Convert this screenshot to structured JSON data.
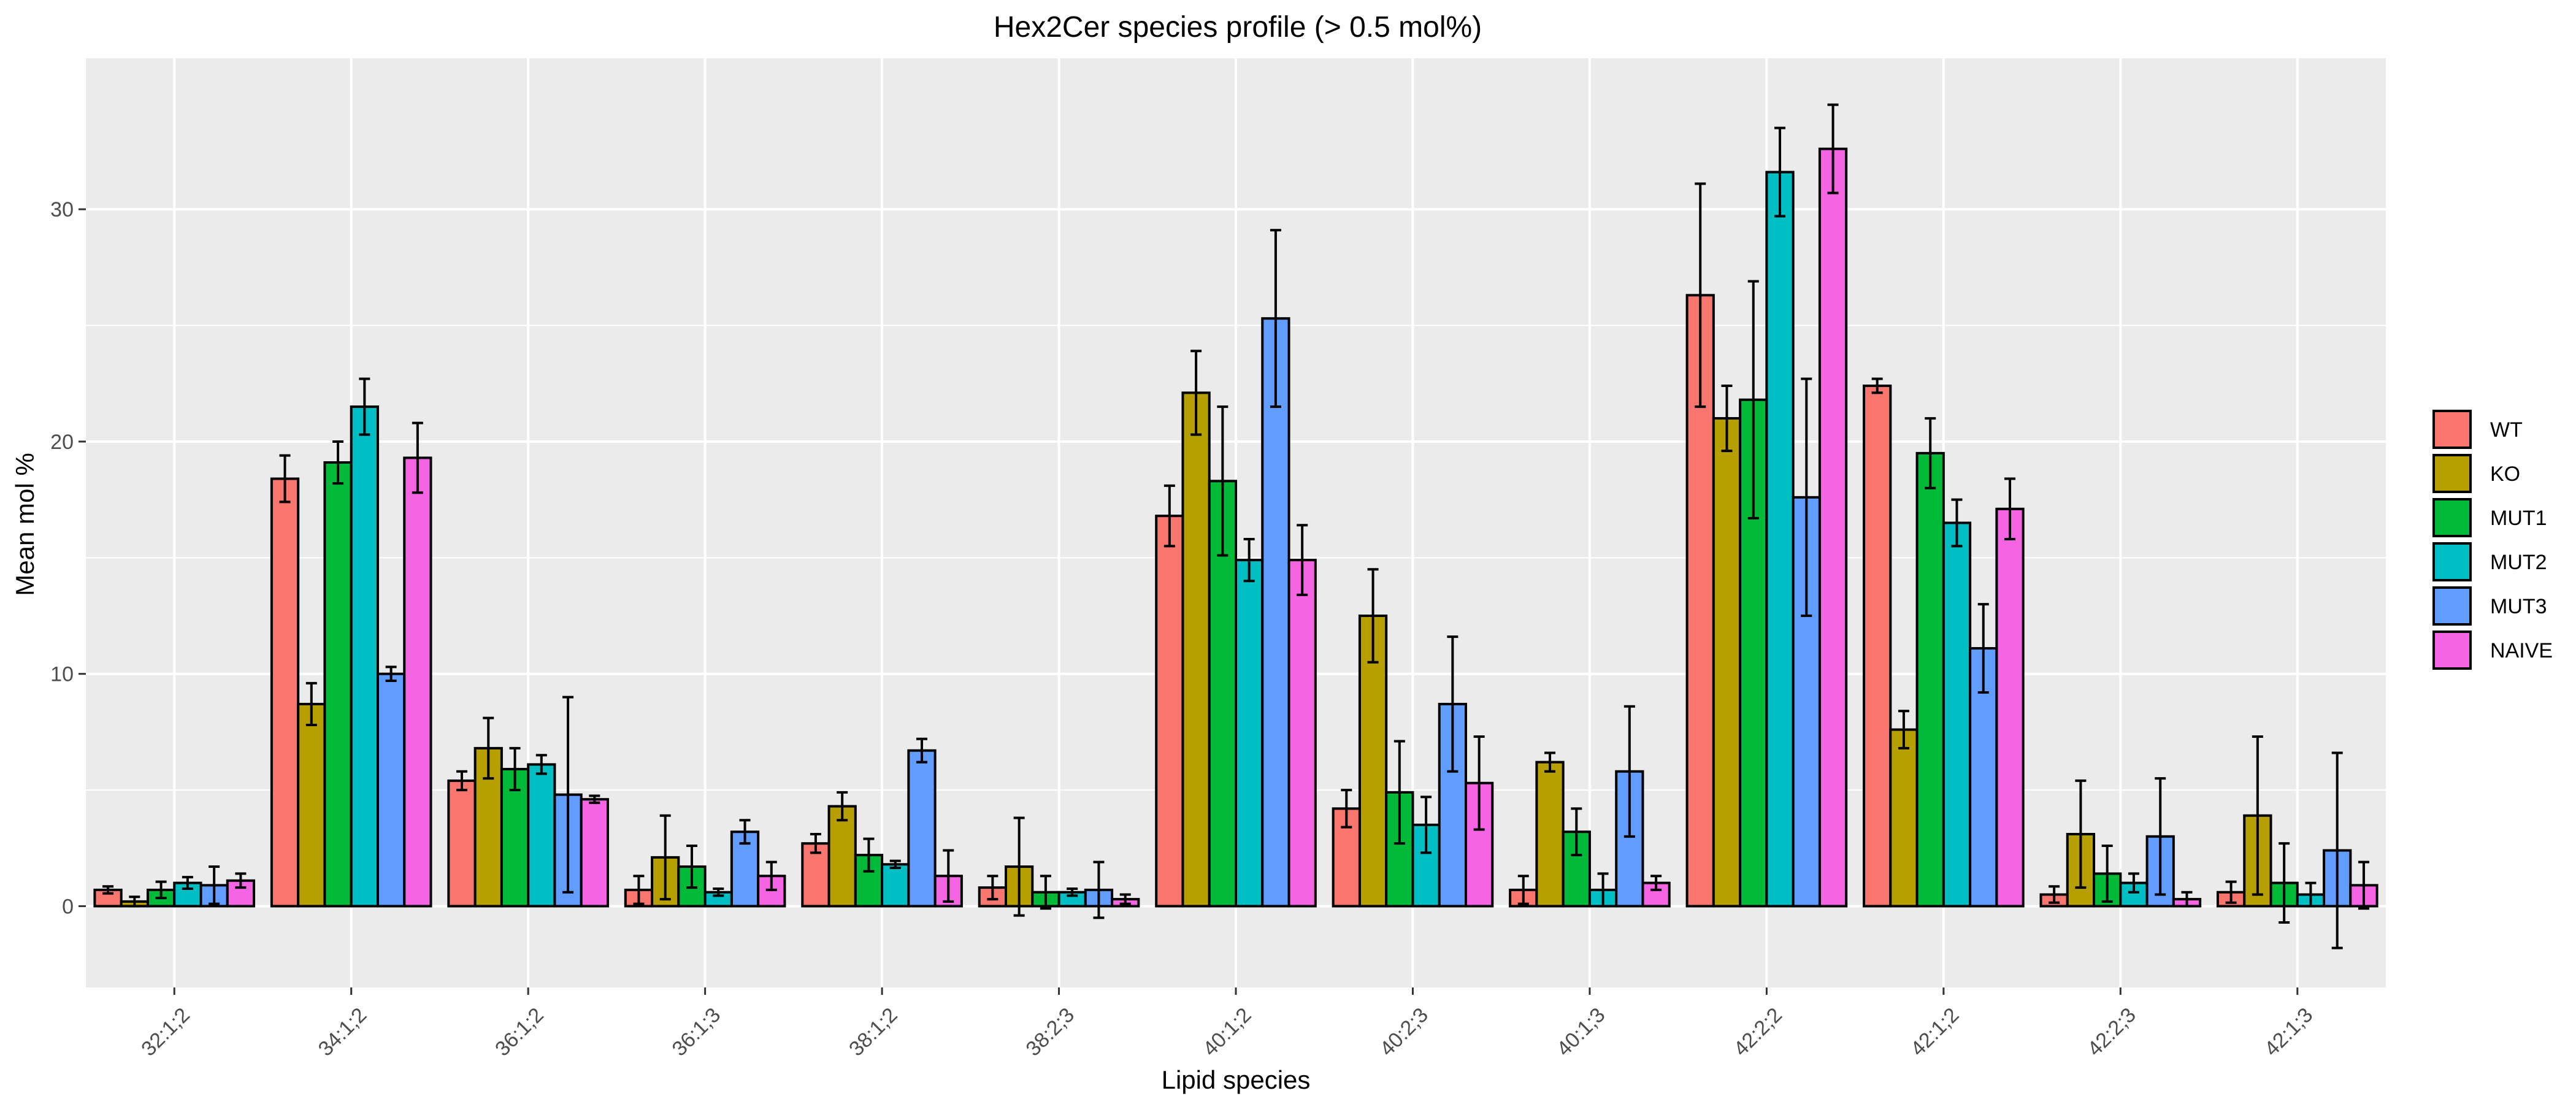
{
  "chart_data": {
    "type": "bar",
    "title": "Hex2Cer species profile (> 0.5 mol%)",
    "xlabel": "Lipid species",
    "ylabel": "Mean mol %",
    "ylim": [
      -3.5,
      36.5
    ],
    "yticks": [
      0,
      10,
      20,
      30
    ],
    "grid": true,
    "legend_position": "right",
    "categories": [
      "32:1;2",
      "34:1;2",
      "36:1;2",
      "36:1;3",
      "38:1;2",
      "38:2;3",
      "40:1;2",
      "40:2;3",
      "40:1;3",
      "42:2;2",
      "42:1;2",
      "42:2;3",
      "42:1;3"
    ],
    "series": [
      {
        "name": "WT",
        "color": "#F8766D",
        "values": [
          0.7,
          18.4,
          5.4,
          0.7,
          2.7,
          0.8,
          16.8,
          4.2,
          0.7,
          26.3,
          22.4,
          0.5,
          0.6
        ],
        "errors": [
          0.15,
          1.0,
          0.4,
          0.6,
          0.4,
          0.5,
          1.3,
          0.8,
          0.6,
          4.8,
          0.3,
          0.35,
          0.45
        ]
      },
      {
        "name": "KO",
        "color": "#B79F00",
        "values": [
          0.2,
          8.7,
          6.8,
          2.1,
          4.3,
          1.7,
          22.1,
          12.5,
          6.2,
          21.0,
          7.6,
          3.1,
          3.9
        ],
        "errors": [
          0.2,
          0.9,
          1.3,
          1.8,
          0.6,
          2.1,
          1.8,
          2.0,
          0.4,
          1.4,
          0.8,
          2.3,
          3.4
        ]
      },
      {
        "name": "MUT1",
        "color": "#00BA38",
        "values": [
          0.7,
          19.1,
          5.9,
          1.7,
          2.2,
          0.6,
          18.3,
          4.9,
          3.2,
          21.8,
          19.5,
          1.4,
          1.0
        ],
        "errors": [
          0.35,
          0.9,
          0.9,
          0.9,
          0.7,
          0.7,
          3.2,
          2.2,
          1.0,
          5.1,
          1.5,
          1.2,
          1.7
        ]
      },
      {
        "name": "MUT2",
        "color": "#00BFC4",
        "values": [
          1.0,
          21.5,
          6.1,
          0.6,
          1.8,
          0.6,
          14.9,
          3.5,
          0.7,
          31.6,
          16.5,
          1.0,
          0.5
        ],
        "errors": [
          0.25,
          1.2,
          0.4,
          0.15,
          0.15,
          0.15,
          0.9,
          1.2,
          0.7,
          1.9,
          1.0,
          0.4,
          0.5
        ]
      },
      {
        "name": "MUT3",
        "color": "#619CFF",
        "values": [
          0.9,
          10.0,
          4.8,
          3.2,
          6.7,
          0.7,
          25.3,
          8.7,
          5.8,
          17.6,
          11.1,
          3.0,
          2.4
        ],
        "errors": [
          0.8,
          0.3,
          4.2,
          0.5,
          0.5,
          1.2,
          3.8,
          2.9,
          2.8,
          5.1,
          1.9,
          2.5,
          4.2
        ]
      },
      {
        "name": "NAIVE",
        "color": "#F564E3",
        "values": [
          1.1,
          19.3,
          4.6,
          1.3,
          1.3,
          0.3,
          14.9,
          5.3,
          1.0,
          32.6,
          17.1,
          0.3,
          0.9
        ],
        "errors": [
          0.3,
          1.5,
          0.15,
          0.6,
          1.1,
          0.2,
          1.5,
          2.0,
          0.3,
          1.9,
          1.3,
          0.3,
          1.0
        ]
      }
    ]
  }
}
